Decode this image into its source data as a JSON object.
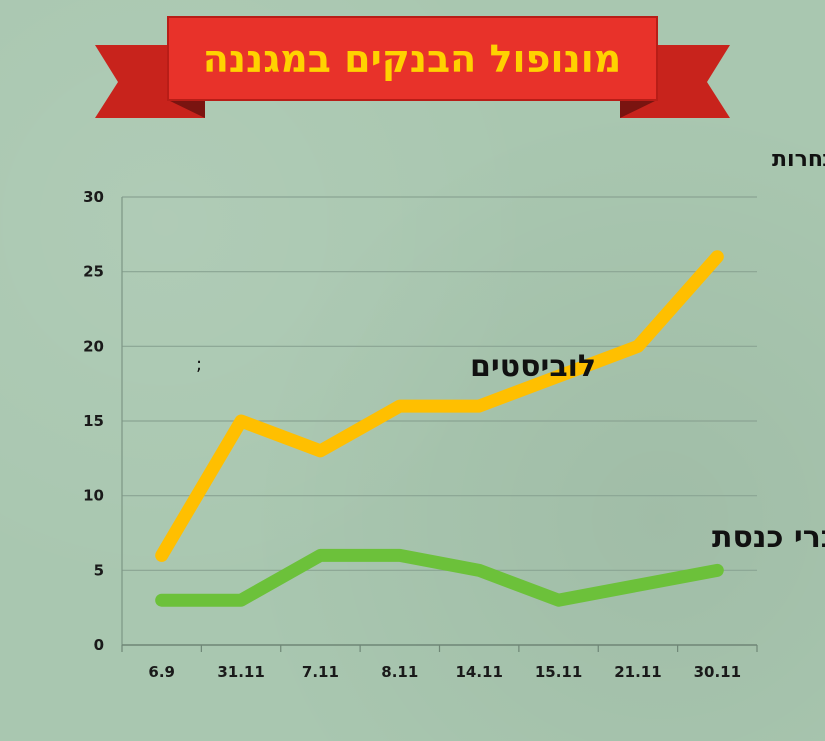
{
  "banner": {
    "title": "מונופול הבנקים במגננה",
    "bg_color": "#e8322a",
    "text_color": "#ffd200"
  },
  "annotation": ";",
  "chart_data": {
    "type": "line",
    "title": "נוכחות בדיונים על פתיחת שוק הבנקים לתחרות",
    "xlabel": "",
    "ylabel": "",
    "categories": [
      "6.9",
      "31.11",
      "7.11",
      "8.11",
      "14.11",
      "15.11",
      "21.11",
      "30.11"
    ],
    "ylim": [
      0,
      30
    ],
    "yticks": [
      0,
      5,
      10,
      15,
      20,
      25,
      30
    ],
    "grid": true,
    "legend": "inline labels",
    "series": [
      {
        "name": "לוביסטים",
        "color": "#ffbf00",
        "values": [
          6,
          15,
          13,
          16,
          16,
          18,
          20,
          26
        ]
      },
      {
        "name": "חברי כנסת",
        "color": "#6cc13a",
        "values": [
          3,
          3,
          6,
          6,
          5,
          3,
          4,
          5
        ]
      }
    ]
  }
}
